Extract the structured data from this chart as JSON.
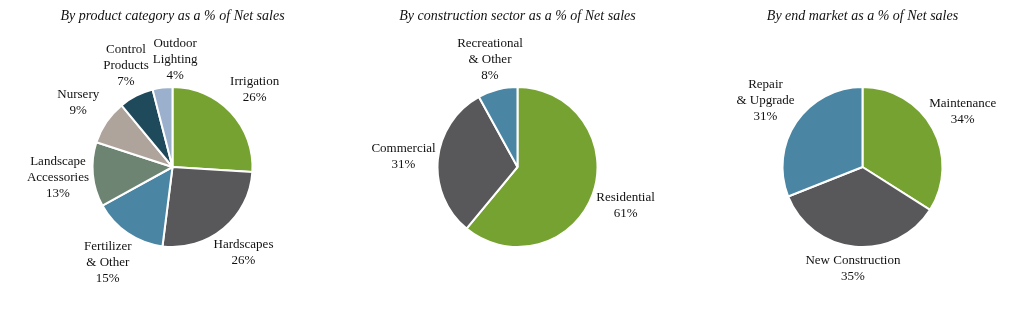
{
  "chart_data": [
    {
      "type": "pie",
      "title": "By product category as a % of Net sales",
      "categories": [
        "Irrigation",
        "Hardscapes",
        "Fertilizer\n& Other",
        "Landscape\nAccessories",
        "Nursery",
        "Control\nProducts",
        "Outdoor\nLighting"
      ],
      "values": [
        26,
        26,
        15,
        13,
        9,
        7,
        4
      ],
      "value_labels": [
        "26%",
        "26%",
        "15%",
        "13%",
        "9%",
        "7%",
        "4%"
      ],
      "colors": [
        "#76a232",
        "#58585a",
        "#4a86a3",
        "#6e8472",
        "#aea49c",
        "#1f4a5c",
        "#9bb0cc"
      ]
    },
    {
      "type": "pie",
      "title": "By construction sector as a % of Net sales",
      "categories": [
        "Residential",
        "Commercial",
        "Recreational\n& Other"
      ],
      "values": [
        61,
        31,
        8
      ],
      "value_labels": [
        "61%",
        "31%",
        "8%"
      ],
      "colors": [
        "#76a232",
        "#58585a",
        "#4a86a3"
      ]
    },
    {
      "type": "pie",
      "title": "By end market as a % of Net sales",
      "categories": [
        "Maintenance",
        "New Construction",
        "Repair\n& Upgrade"
      ],
      "values": [
        34,
        35,
        31
      ],
      "value_labels": [
        "34%",
        "35%",
        "31%"
      ],
      "colors": [
        "#76a232",
        "#58585a",
        "#4a86a3"
      ]
    }
  ]
}
